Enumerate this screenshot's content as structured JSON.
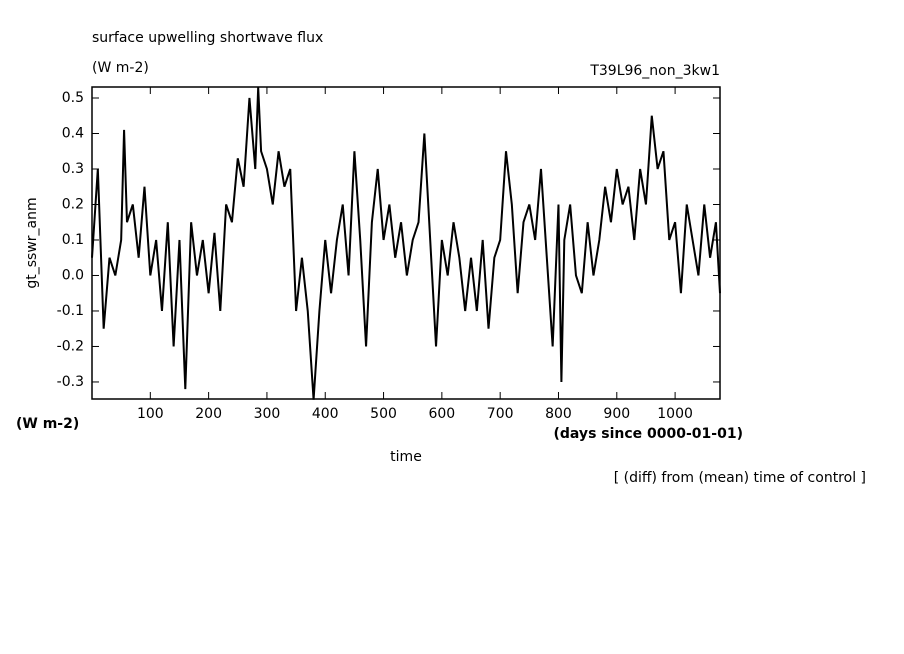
{
  "chart_data": {
    "type": "line",
    "title": "surface upwelling shortwave flux",
    "units": "(W m-2)",
    "run_label": "T39L96_non_3kw1",
    "y_label": "gt_sswr_anm",
    "y_unit_label": "(W m-2)",
    "x_label": "time",
    "x_unit_label": "(days since 0000-01-01)",
    "note": "[ (diff) from (mean) time of control ]",
    "color": "#000000",
    "xlim": [
      0,
      1077
    ],
    "ylim": [
      -0.348,
      0.531
    ],
    "xticks": [
      100,
      200,
      300,
      400,
      500,
      600,
      700,
      800,
      900,
      1000
    ],
    "yticks": [
      -0.3,
      -0.2,
      -0.1,
      {
        "value": 0,
        "label": "0.0"
      },
      0.1,
      0.2,
      0.3,
      0.4,
      0.5
    ],
    "x": [
      0,
      10,
      20,
      30,
      40,
      50,
      55,
      60,
      70,
      80,
      90,
      100,
      110,
      120,
      130,
      140,
      150,
      160,
      170,
      180,
      190,
      200,
      210,
      220,
      230,
      240,
      250,
      260,
      270,
      280,
      285,
      290,
      300,
      310,
      320,
      330,
      340,
      350,
      360,
      370,
      380,
      390,
      400,
      410,
      420,
      430,
      440,
      450,
      460,
      470,
      480,
      490,
      500,
      510,
      520,
      530,
      540,
      550,
      560,
      570,
      580,
      590,
      600,
      610,
      620,
      630,
      640,
      650,
      660,
      670,
      680,
      690,
      700,
      710,
      720,
      730,
      740,
      750,
      760,
      770,
      780,
      790,
      800,
      805,
      810,
      820,
      830,
      840,
      850,
      860,
      870,
      880,
      890,
      900,
      910,
      920,
      930,
      940,
      950,
      960,
      970,
      980,
      990,
      1000,
      1010,
      1020,
      1030,
      1040,
      1050,
      1060,
      1070,
      1077
    ],
    "values": [
      0.05,
      0.3,
      -0.15,
      0.05,
      0.0,
      0.1,
      0.41,
      0.15,
      0.2,
      0.05,
      0.25,
      0.0,
      0.1,
      -0.1,
      0.15,
      -0.2,
      0.1,
      -0.32,
      0.15,
      0.0,
      0.1,
      -0.05,
      0.12,
      -0.1,
      0.2,
      0.15,
      0.33,
      0.25,
      0.5,
      0.3,
      0.53,
      0.35,
      0.3,
      0.2,
      0.35,
      0.25,
      0.3,
      -0.1,
      0.05,
      -0.1,
      -0.35,
      -0.1,
      0.1,
      -0.05,
      0.1,
      0.2,
      0.0,
      0.35,
      0.1,
      -0.2,
      0.15,
      0.3,
      0.1,
      0.2,
      0.05,
      0.15,
      0.0,
      0.1,
      0.15,
      0.4,
      0.1,
      -0.2,
      0.1,
      0.0,
      0.15,
      0.05,
      -0.1,
      0.05,
      -0.1,
      0.1,
      -0.15,
      0.05,
      0.1,
      0.35,
      0.2,
      -0.05,
      0.15,
      0.2,
      0.1,
      0.3,
      0.05,
      -0.2,
      0.2,
      -0.3,
      0.1,
      0.2,
      0.0,
      -0.05,
      0.15,
      0.0,
      0.1,
      0.25,
      0.15,
      0.3,
      0.2,
      0.25,
      0.1,
      0.3,
      0.2,
      0.45,
      0.3,
      0.35,
      0.1,
      0.15,
      -0.05,
      0.2,
      0.1,
      0.0,
      0.2,
      0.05,
      0.15,
      -0.05
    ]
  }
}
